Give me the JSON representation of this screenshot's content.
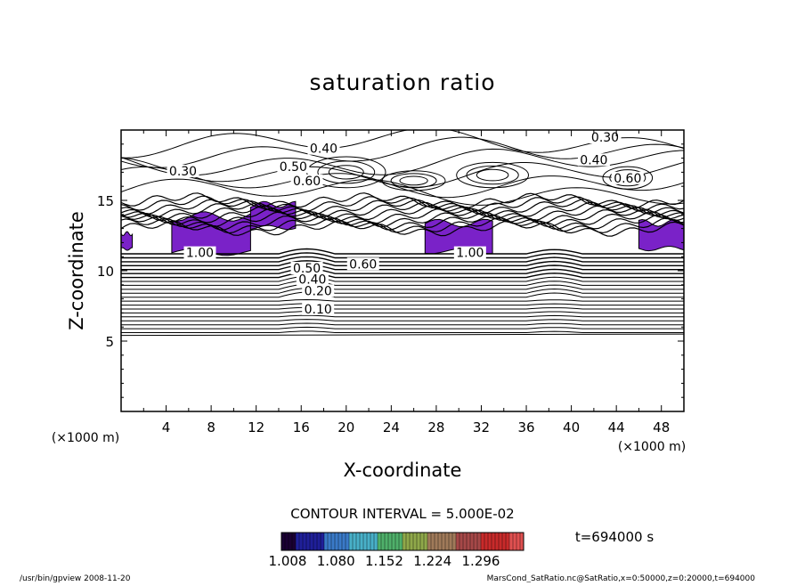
{
  "chart_data": {
    "type": "contour",
    "title": "saturation ratio",
    "xlabel": "X-coordinate",
    "ylabel": "Z-coordinate",
    "x_unit": "(×1000 m)",
    "z_unit": "(×1000 m)",
    "xlim": [
      0,
      50
    ],
    "ylim": [
      0,
      20
    ],
    "x_ticks": [
      4,
      8,
      12,
      16,
      20,
      24,
      28,
      32,
      36,
      40,
      44,
      48
    ],
    "y_ticks": [
      5,
      10,
      15
    ],
    "contour_interval_text": "CONTOUR INTERVAL = 5.000E-02",
    "contour_labels": [
      {
        "text": "0.30",
        "x": 43.0,
        "z": 19.3
      },
      {
        "text": "0.40",
        "x": 18.0,
        "z": 18.5
      },
      {
        "text": "0.30",
        "x": 5.5,
        "z": 16.9
      },
      {
        "text": "0.50",
        "x": 15.3,
        "z": 17.2
      },
      {
        "text": "0.60",
        "x": 16.5,
        "z": 16.2
      },
      {
        "text": "0.40",
        "x": 42.0,
        "z": 17.7
      },
      {
        "text": "0.60",
        "x": 45.0,
        "z": 16.4
      },
      {
        "text": "1.00",
        "x": 7.0,
        "z": 11.1
      },
      {
        "text": "1.00",
        "x": 31.0,
        "z": 11.1
      },
      {
        "text": "0.60",
        "x": 21.5,
        "z": 10.3
      },
      {
        "text": "0.50",
        "x": 16.5,
        "z": 10.0
      },
      {
        "text": "0.40",
        "x": 17.0,
        "z": 9.2
      },
      {
        "text": "0.20",
        "x": 17.5,
        "z": 8.4
      },
      {
        "text": "0.10",
        "x": 17.5,
        "z": 7.1
      }
    ],
    "supersaturated_regions": [
      {
        "x": [
          0.0,
          1.0
        ],
        "z": [
          11.5,
          12.7
        ],
        "level": 1.05
      },
      {
        "x": [
          4.5,
          11.5
        ],
        "z": [
          11.2,
          14.0
        ],
        "level": 1.1
      },
      {
        "x": [
          11.5,
          15.5
        ],
        "z": [
          13.0,
          14.8
        ],
        "level": 1.05
      },
      {
        "x": [
          27.0,
          33.0
        ],
        "z": [
          11.3,
          13.5
        ],
        "level": 1.1
      },
      {
        "x": [
          46.0,
          50.0
        ],
        "z": [
          11.5,
          13.5
        ],
        "level": 1.05
      }
    ],
    "colorbar": {
      "ticks": [
        "1.008",
        "1.080",
        "1.152",
        "1.224",
        "1.296"
      ],
      "colors": [
        "#1a0033",
        "#1f1f99",
        "#3a7ac8",
        "#48b0c8",
        "#4fb06a",
        "#8fa84a",
        "#a07a5a",
        "#a64848",
        "#c82a2a",
        "#e05050"
      ]
    },
    "time_label": "t=694000 s",
    "fill_color": "#7a22c8"
  },
  "footer": {
    "left": "/usr/bin/gpview  2008-11-20",
    "right": "MarsCond_SatRatio.nc@SatRatio,x=0:50000,z=0:20000,t=694000"
  }
}
